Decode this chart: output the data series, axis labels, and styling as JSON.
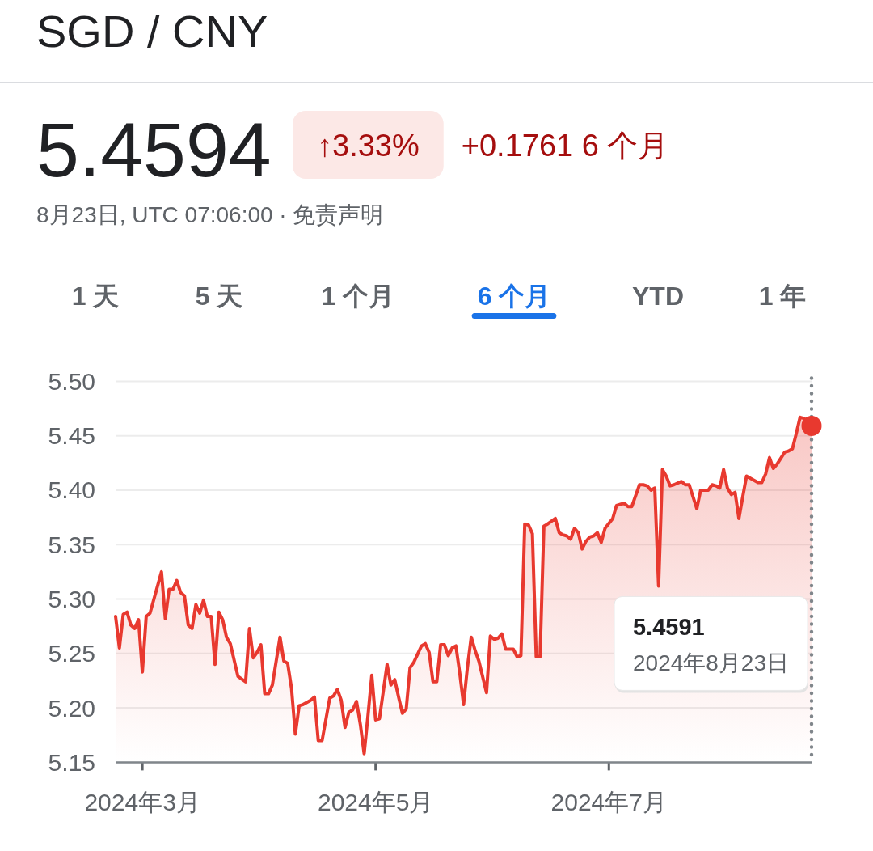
{
  "chart_data": {
    "type": "area",
    "title": "SGD / CNY",
    "subtitle": "8月23日, UTC 07:06:00 · 免责声明",
    "annotations": [
      "5.4594",
      "↑3.33%",
      "+0.1761 6 个月",
      "1 天",
      "5 天",
      "1 个月",
      "6 个月",
      "YTD",
      "1 年",
      "5.4591",
      "2024年8月23日"
    ],
    "x": [
      "2024-02-23",
      "2024-02-24",
      "2024-02-25",
      "2024-02-26",
      "2024-02-27",
      "2024-02-28",
      "2024-02-29",
      "2024-03-01",
      "2024-03-02",
      "2024-03-03",
      "2024-03-06",
      "2024-03-07",
      "2024-03-08",
      "2024-03-09",
      "2024-03-10",
      "2024-03-11",
      "2024-03-12",
      "2024-03-13",
      "2024-03-14",
      "2024-03-15",
      "2024-03-16",
      "2024-03-17",
      "2024-03-18",
      "2024-03-19",
      "2024-03-20",
      "2024-03-21",
      "2024-03-22",
      "2024-03-23",
      "2024-03-24",
      "2024-03-26",
      "2024-03-28",
      "2024-03-29",
      "2024-03-30",
      "2024-03-31",
      "2024-04-01",
      "2024-04-02",
      "2024-04-03",
      "2024-04-04",
      "2024-04-06",
      "2024-04-07",
      "2024-04-08",
      "2024-04-09",
      "2024-04-10",
      "2024-04-11",
      "2024-04-12",
      "2024-04-14",
      "2024-04-15",
      "2024-04-16",
      "2024-04-17",
      "2024-04-19",
      "2024-04-20",
      "2024-04-21",
      "2024-04-22",
      "2024-04-23",
      "2024-04-24",
      "2024-04-25",
      "2024-04-26",
      "2024-04-27",
      "2024-04-28",
      "2024-04-29",
      "2024-04-30",
      "2024-05-01",
      "2024-05-02",
      "2024-05-04",
      "2024-05-05",
      "2024-05-06",
      "2024-05-07",
      "2024-05-08",
      "2024-05-09",
      "2024-05-10",
      "2024-05-11",
      "2024-05-13",
      "2024-05-14",
      "2024-05-15",
      "2024-05-16",
      "2024-05-17",
      "2024-05-18",
      "2024-05-19",
      "2024-05-20",
      "2024-05-21",
      "2024-05-22",
      "2024-05-23",
      "2024-05-24",
      "2024-05-25",
      "2024-05-26",
      "2024-05-27",
      "2024-05-28",
      "2024-05-30",
      "2024-05-31",
      "2024-06-01",
      "2024-06-02",
      "2024-06-03",
      "2024-06-04",
      "2024-06-05",
      "2024-06-06",
      "2024-06-07",
      "2024-06-08",
      "2024-06-09",
      "2024-06-10",
      "2024-06-11",
      "2024-06-12",
      "2024-06-13",
      "2024-06-14",
      "2024-06-15",
      "2024-06-17",
      "2024-06-18",
      "2024-06-19",
      "2024-06-20",
      "2024-06-21",
      "2024-06-22",
      "2024-06-23",
      "2024-06-24",
      "2024-06-25",
      "2024-06-26",
      "2024-06-27",
      "2024-06-28",
      "2024-06-29",
      "2024-06-30",
      "2024-07-02",
      "2024-07-03",
      "2024-07-04",
      "2024-07-05",
      "2024-07-06",
      "2024-07-07",
      "2024-07-09",
      "2024-07-10",
      "2024-07-11",
      "2024-07-12",
      "2024-07-13",
      "2024-07-14",
      "2024-07-15",
      "2024-07-16",
      "2024-07-17",
      "2024-07-18",
      "2024-07-20",
      "2024-07-21",
      "2024-07-22",
      "2024-07-24",
      "2024-07-25",
      "2024-07-26",
      "2024-07-27",
      "2024-07-28",
      "2024-07-29",
      "2024-07-30",
      "2024-07-31",
      "2024-08-01",
      "2024-08-02",
      "2024-08-03",
      "2024-08-04",
      "2024-08-05",
      "2024-08-06",
      "2024-08-07",
      "2024-08-09",
      "2024-08-10",
      "2024-08-11",
      "2024-08-12",
      "2024-08-13",
      "2024-08-14",
      "2024-08-16",
      "2024-08-17",
      "2024-08-18",
      "2024-08-19",
      "2024-08-20",
      "2024-08-21",
      "2024-08-23"
    ],
    "series": [
      {
        "type": "area",
        "color": "#e8392f",
        "values": [
          5.284,
          5.255,
          5.286,
          5.288,
          5.276,
          5.273,
          5.281,
          5.233,
          5.284,
          5.287,
          5.325,
          5.282,
          5.309,
          5.309,
          5.317,
          5.306,
          5.303,
          5.276,
          5.273,
          5.295,
          5.287,
          5.299,
          5.284,
          5.284,
          5.24,
          5.288,
          5.281,
          5.265,
          5.259,
          5.229,
          5.224,
          5.273,
          5.246,
          5.251,
          5.258,
          5.213,
          5.213,
          5.221,
          5.265,
          5.243,
          5.241,
          5.218,
          5.176,
          5.202,
          5.203,
          5.207,
          5.21,
          5.17,
          5.17,
          5.209,
          5.211,
          5.217,
          5.207,
          5.182,
          5.196,
          5.198,
          5.206,
          5.185,
          5.158,
          5.193,
          5.23,
          5.189,
          5.19,
          5.24,
          5.221,
          5.226,
          5.21,
          5.195,
          5.199,
          5.237,
          5.242,
          5.257,
          5.259,
          5.251,
          5.224,
          5.224,
          5.258,
          5.258,
          5.248,
          5.255,
          5.257,
          5.232,
          5.203,
          5.237,
          5.265,
          5.253,
          5.243,
          5.214,
          5.266,
          5.263,
          5.264,
          5.268,
          5.254,
          5.254,
          5.254,
          5.247,
          5.248,
          5.369,
          5.368,
          5.36,
          5.247,
          5.247,
          5.367,
          5.369,
          5.374,
          5.361,
          5.359,
          5.358,
          5.355,
          5.365,
          5.361,
          5.346,
          5.353,
          5.357,
          5.358,
          5.361,
          5.352,
          5.365,
          5.374,
          5.386,
          5.387,
          5.388,
          5.385,
          5.385,
          5.405,
          5.405,
          5.404,
          5.4,
          5.402,
          5.312,
          5.419,
          5.413,
          5.404,
          5.405,
          5.408,
          5.405,
          5.405,
          5.383,
          5.4,
          5.4,
          5.4,
          5.405,
          5.404,
          5.402,
          5.419,
          5.402,
          5.396,
          5.398,
          5.374,
          5.394,
          5.413,
          5.411,
          5.407,
          5.407,
          5.415,
          5.43,
          5.42,
          5.424,
          5.435,
          5.436,
          5.438,
          5.452,
          5.467,
          5.466,
          5.4591
        ]
      },
      {
        "type": "scatter",
        "color": "#e8392f",
        "x": [
          "2024-08-23"
        ],
        "values": [
          5.4591
        ]
      }
    ],
    "xlim": [
      "2024-02-23",
      "2024-08-23"
    ],
    "xticks": [
      {
        "value": "2024-03-01",
        "label": "2024年3月"
      },
      {
        "value": "2024-05-01",
        "label": "2024年5月"
      },
      {
        "value": "2024-07-01",
        "label": "2024年7月"
      }
    ],
    "ylim": [
      5.15,
      5.5
    ],
    "yticks": [
      5.15,
      {
        "value": 5.2,
        "label": "5.20"
      },
      5.25,
      {
        "value": 5.3,
        "label": "5.30"
      },
      5.35,
      {
        "value": 5.4,
        "label": "5.40"
      },
      5.45,
      {
        "value": 5.5,
        "label": "5.50"
      }
    ],
    "grid": "y",
    "ref_lines": [
      {
        "axis": "x",
        "value": "2024-08-23",
        "line_style": "dotted",
        "color": "#80868b"
      }
    ]
  }
}
